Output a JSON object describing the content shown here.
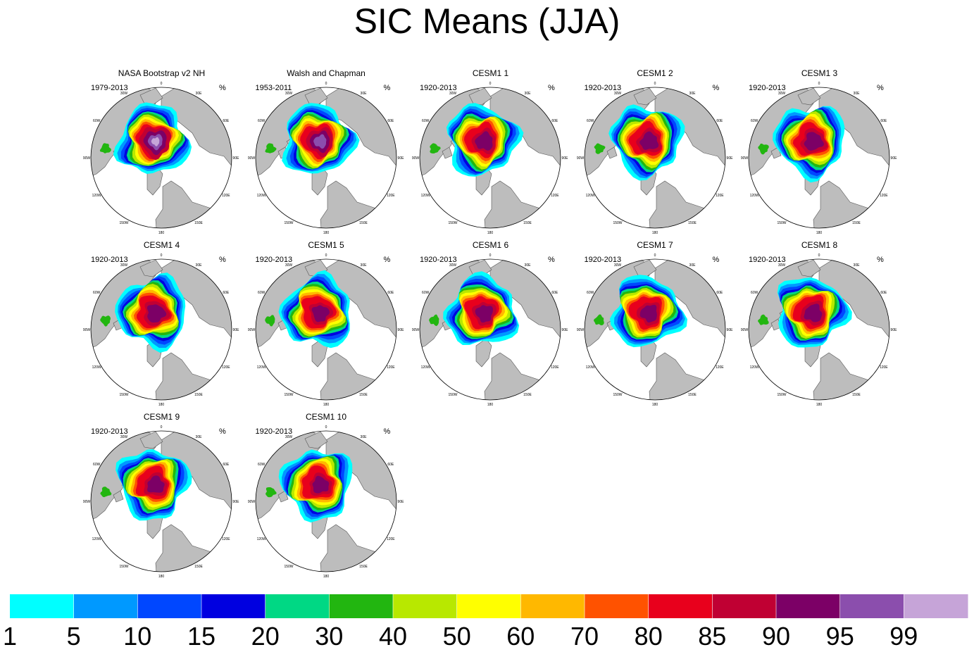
{
  "title": "SIC Means (JJA)",
  "chart_data": {
    "type": "polar-map-panels",
    "title": "SIC Means (JJA)",
    "variable": "Sea ice concentration",
    "season": "JJA",
    "unit": "%",
    "projection": "north polar stereographic",
    "longitude_labels": [
      "180",
      "150E",
      "120E",
      "90E",
      "60E",
      "30E",
      "0",
      "30W",
      "60W",
      "90W",
      "120W",
      "150W"
    ],
    "panels": [
      {
        "title": "NASA Bootstrap v2 NH",
        "period": "1979-2013",
        "unit": "%",
        "max_category": 99,
        "max_category_scale": 1.0
      },
      {
        "title": "Walsh and Chapman",
        "period": "1953-2011",
        "unit": "%",
        "max_category": 95,
        "max_category_scale": 0.75
      },
      {
        "title": "CESM1 1",
        "period": "1920-2013",
        "unit": "%",
        "max_category": 90,
        "max_category_scale": 0.55
      },
      {
        "title": "CESM1 2",
        "period": "1920-2013",
        "unit": "%",
        "max_category": 90,
        "max_category_scale": 0.55
      },
      {
        "title": "CESM1 3",
        "period": "1920-2013",
        "unit": "%",
        "max_category": 90,
        "max_category_scale": 0.6
      },
      {
        "title": "CESM1 4",
        "period": "1920-2013",
        "unit": "%",
        "max_category": 90,
        "max_category_scale": 0.6
      },
      {
        "title": "CESM1 5",
        "period": "1920-2013",
        "unit": "%",
        "max_category": 90,
        "max_category_scale": 0.45
      },
      {
        "title": "CESM1 6",
        "period": "1920-2013",
        "unit": "%",
        "max_category": 90,
        "max_category_scale": 0.5
      },
      {
        "title": "CESM1 7",
        "period": "1920-2013",
        "unit": "%",
        "max_category": 90,
        "max_category_scale": 0.5
      },
      {
        "title": "CESM1 8",
        "period": "1920-2013",
        "unit": "%",
        "max_category": 90,
        "max_category_scale": 0.55
      },
      {
        "title": "CESM1 9",
        "period": "1920-2013",
        "unit": "%",
        "max_category": 90,
        "max_category_scale": 0.5
      },
      {
        "title": "CESM1 10",
        "period": "1920-2013",
        "unit": "%",
        "max_category": 90,
        "max_category_scale": 0.45
      }
    ],
    "colorbar": {
      "labels": [
        "1",
        "5",
        "10",
        "15",
        "20",
        "30",
        "40",
        "50",
        "60",
        "70",
        "80",
        "85",
        "90",
        "95",
        "99"
      ],
      "colors": [
        "#00ffff",
        "#0099ff",
        "#0047ff",
        "#0000e0",
        "#00d884",
        "#22b610",
        "#b8e800",
        "#ffff00",
        "#ffb800",
        "#ff5200",
        "#e8001c",
        "#c00033",
        "#7c0066",
        "#8b4ead",
        "#c6a4d8"
      ]
    }
  },
  "colors": {
    "land": "#bdbdbd",
    "ocean": "#ffffff",
    "coast": "#555555"
  }
}
